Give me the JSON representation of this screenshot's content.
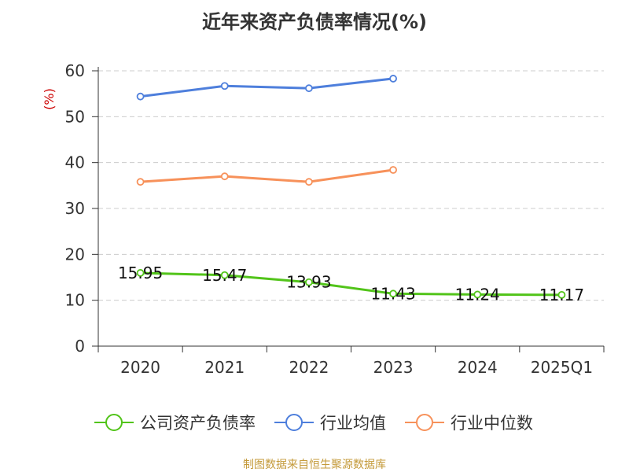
{
  "page": {
    "title": "近年来资产负债率情况(%)",
    "source": "制图数据来自恒生聚源数据库"
  },
  "colors": {
    "company": "#52c41a",
    "industry_avg": "#4e7fdc",
    "industry_median": "#f7915a",
    "unit": "#cc0000",
    "source": "#c49a3a"
  },
  "chart_data": {
    "type": "line",
    "title": "近年来资产负债率情况(%)",
    "ylabel": "(%)",
    "xlabel": "",
    "categories": [
      "2020",
      "2021",
      "2022",
      "2023",
      "2024",
      "2025Q1"
    ],
    "ylim": [
      0,
      60
    ],
    "yticks": [
      0,
      10,
      20,
      30,
      40,
      50,
      60
    ],
    "grid": true,
    "legend_position": "bottom",
    "series": [
      {
        "name": "公司资产负债率",
        "values": [
          15.95,
          15.47,
          13.93,
          11.43,
          11.24,
          11.17
        ],
        "labels": [
          "15.95",
          "15.47",
          "13.93",
          "11.43",
          "11.24",
          "11.17"
        ],
        "color": "#52c41a"
      },
      {
        "name": "行业均值",
        "values": [
          54.4,
          56.7,
          56.2,
          58.3,
          null,
          null
        ],
        "color": "#4e7fdc"
      },
      {
        "name": "行业中位数",
        "values": [
          35.8,
          37.0,
          35.8,
          38.4,
          null,
          null
        ],
        "color": "#f7915a"
      }
    ]
  }
}
